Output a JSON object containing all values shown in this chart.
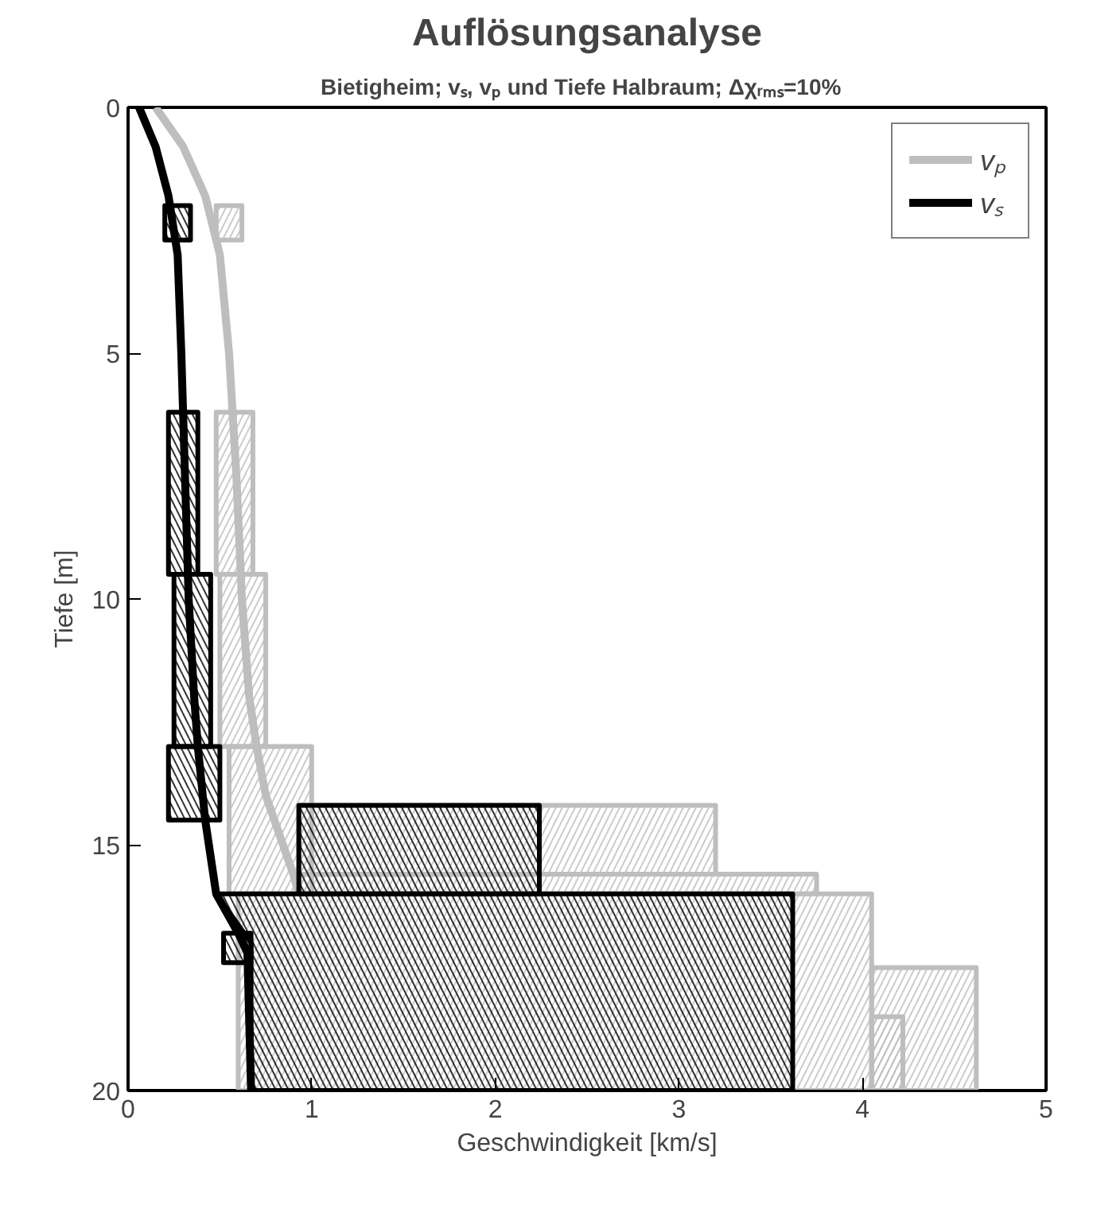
{
  "chart_data": {
    "type": "line",
    "title": "Auflösungsanalyse",
    "subtitle": "Bietigheim;  vₛ, vₚ  und Tiefe Halbraum; Δχᵣₘₛ=10%",
    "xlabel": "Geschwindigkeit [km/s]",
    "ylabel": "Tiefe [m]",
    "xlim": [
      0,
      5
    ],
    "xticks": [
      0,
      1,
      2,
      3,
      4,
      5
    ],
    "ylim": [
      20,
      0
    ],
    "yticks": [
      0,
      5,
      10,
      15,
      20
    ],
    "grid": false,
    "legend": "top right",
    "series": [
      {
        "type": "area",
        "color": "#bebebe",
        "x": [
          0.48,
          0.62,
          0.62,
          0.48,
          0.48
        ],
        "values": [
          2,
          2,
          2.7,
          2.7,
          2
        ]
      },
      {
        "type": "area",
        "color": "#bebebe",
        "x": [
          0.48,
          0.68,
          0.68,
          0.48,
          0.48
        ],
        "values": [
          6.2,
          6.2,
          9.5,
          9.5,
          6.2
        ]
      },
      {
        "type": "area",
        "color": "#bebebe",
        "x": [
          0.5,
          0.75,
          0.75,
          0.5,
          0.5
        ],
        "values": [
          9.5,
          9.5,
          13,
          13,
          9.5
        ]
      },
      {
        "type": "area",
        "color": "#bebebe",
        "x": [
          0.55,
          1.0,
          1.0,
          0.55,
          0.55
        ],
        "values": [
          13,
          13,
          16,
          16,
          13
        ]
      },
      {
        "type": "area",
        "color": "#bebebe",
        "x": [
          0.93,
          3.2,
          3.2,
          0.93,
          0.93
        ],
        "values": [
          14.2,
          14.2,
          15.6,
          15.6,
          14.2
        ]
      },
      {
        "type": "area",
        "color": "#bebebe",
        "x": [
          0.93,
          3.75,
          3.75,
          0.93,
          0.93
        ],
        "values": [
          15.6,
          15.6,
          16,
          16,
          15.6
        ]
      },
      {
        "type": "area",
        "color": "#bebebe",
        "x": [
          0.6,
          4.05,
          4.05,
          0.6,
          0.6
        ],
        "values": [
          16,
          16,
          20,
          20,
          16
        ]
      },
      {
        "type": "area",
        "color": "#bebebe",
        "x": [
          4.05,
          4.62,
          4.62,
          4.05,
          4.05
        ],
        "values": [
          17.5,
          17.5,
          20,
          20,
          17.5
        ]
      },
      {
        "type": "area",
        "color": "#bebebe",
        "x": [
          4.05,
          4.22,
          4.22,
          4.05,
          4.05
        ],
        "values": [
          18.5,
          18.5,
          20,
          20,
          18.5
        ]
      },
      {
        "name": "vₚ",
        "color": "#bebebe",
        "x": [
          0.15,
          0.3,
          0.42,
          0.5,
          0.55,
          0.59,
          0.62,
          0.66,
          0.7,
          0.75,
          0.9,
          0.93
        ],
        "values": [
          0,
          0.8,
          1.8,
          3,
          5,
          7.5,
          10,
          12,
          13,
          14,
          15.6,
          16
        ]
      },
      {
        "type": "area",
        "color": "#000000",
        "x": [
          0.2,
          0.34,
          0.34,
          0.2,
          0.2
        ],
        "values": [
          2,
          2,
          2.7,
          2.7,
          2
        ]
      },
      {
        "type": "area",
        "color": "#000000",
        "x": [
          0.22,
          0.38,
          0.38,
          0.22,
          0.22
        ],
        "values": [
          6.2,
          6.2,
          9.5,
          9.5,
          6.2
        ]
      },
      {
        "type": "area",
        "color": "#000000",
        "x": [
          0.25,
          0.45,
          0.45,
          0.25,
          0.25
        ],
        "values": [
          9.5,
          9.5,
          13,
          13,
          9.5
        ]
      },
      {
        "type": "area",
        "color": "#000000",
        "x": [
          0.22,
          0.5,
          0.5,
          0.22,
          0.22
        ],
        "values": [
          13,
          13,
          14.5,
          14.5,
          13
        ]
      },
      {
        "type": "area",
        "color": "#000000",
        "x": [
          0.93,
          2.24,
          2.24,
          0.93,
          0.93
        ],
        "values": [
          14.2,
          14.2,
          16,
          16,
          14.2
        ]
      },
      {
        "type": "area",
        "color": "#000000",
        "x": [
          0.48,
          3.62,
          3.62,
          0.67,
          0.67,
          0.48
        ],
        "values": [
          16,
          16,
          20,
          20,
          17,
          16
        ]
      },
      {
        "type": "area",
        "color": "#000000",
        "x": [
          0.52,
          0.67,
          0.67,
          0.52,
          0.52
        ],
        "values": [
          16.8,
          16.8,
          17.4,
          17.4,
          16.8
        ]
      },
      {
        "name": "vₛ",
        "color": "#000000",
        "x": [
          0.06,
          0.15,
          0.22,
          0.27,
          0.29,
          0.31,
          0.33,
          0.36,
          0.38,
          0.42,
          0.48,
          0.6,
          0.65,
          0.67
        ],
        "values": [
          0,
          0.8,
          1.8,
          3,
          5,
          7.5,
          10,
          12,
          13,
          14.5,
          16,
          16.8,
          17.2,
          20
        ]
      }
    ]
  }
}
